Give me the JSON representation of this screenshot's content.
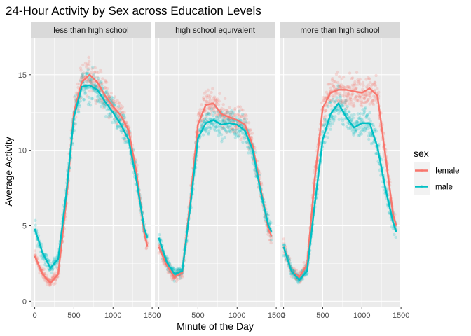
{
  "chart_data": {
    "type": "scatter",
    "title": "24-Hour Activity by Sex across Education Levels",
    "xlabel": "Minute of the Day",
    "ylabel": "Average Activity",
    "xlim": [
      -50,
      1490
    ],
    "ylim": [
      -0.4,
      17.4
    ],
    "x_ticks": [
      0,
      500,
      1000,
      1500
    ],
    "x_tick_labels": [
      "0",
      "500",
      "1000",
      "1500"
    ],
    "y_ticks": [
      0,
      5,
      10,
      15
    ],
    "y_tick_labels": [
      "0",
      "5",
      "10",
      "15"
    ],
    "grid": true,
    "legend": {
      "title": "sex",
      "position": "right"
    },
    "colors": {
      "female": "#F8766D",
      "male": "#00BFC4",
      "panel": "#EBEBEB",
      "strip": "#D9D9D9",
      "grid": "#FFFFFF"
    },
    "smooth_x": [
      0,
      100,
      200,
      300,
      400,
      500,
      600,
      700,
      800,
      900,
      1000,
      1100,
      1200,
      1300,
      1400,
      1440
    ],
    "panels": [
      {
        "label": "less than high school",
        "series": [
          {
            "name": "female",
            "values": [
              3.0,
              1.8,
              1.2,
              1.8,
              6.5,
              12.5,
              14.5,
              15.0,
              14.5,
              13.6,
              12.9,
              12.3,
              11.3,
              8.5,
              4.5,
              3.6
            ]
          },
          {
            "name": "male",
            "values": [
              4.8,
              3.2,
              2.2,
              2.8,
              7.0,
              12.2,
              14.2,
              14.3,
              14.0,
              13.2,
              12.5,
              11.7,
              10.7,
              8.0,
              4.8,
              4.2
            ]
          }
        ]
      },
      {
        "label": "high school equivalent",
        "series": [
          {
            "name": "female",
            "values": [
              3.6,
              2.4,
              1.6,
              1.9,
              6.5,
              11.7,
              13.0,
              13.1,
              12.4,
              12.2,
              12.0,
              11.7,
              10.3,
              7.5,
              4.8,
              4.3
            ]
          },
          {
            "name": "male",
            "values": [
              4.2,
              2.6,
              1.8,
              2.0,
              6.2,
              10.8,
              11.8,
              12.0,
              11.7,
              11.8,
              11.7,
              11.3,
              10.0,
              7.3,
              5.0,
              4.6
            ]
          }
        ]
      },
      {
        "label": "more than high school",
        "series": [
          {
            "name": "female",
            "values": [
              3.6,
              2.0,
              1.6,
              2.4,
              8.2,
              12.8,
              13.8,
              14.0,
              14.0,
              13.9,
              13.8,
              14.1,
              13.6,
              9.7,
              5.7,
              5.0
            ]
          },
          {
            "name": "male",
            "values": [
              3.6,
              2.0,
              1.4,
              2.0,
              6.5,
              10.7,
              12.4,
              13.1,
              12.2,
              11.5,
              11.8,
              11.8,
              10.2,
              7.5,
              5.2,
              4.6
            ]
          }
        ]
      }
    ]
  }
}
